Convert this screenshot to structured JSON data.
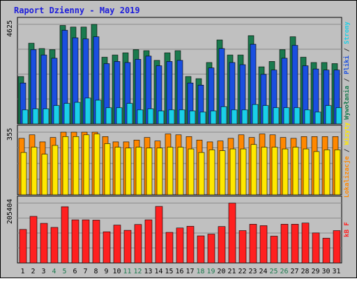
{
  "chart_data": {
    "type": "bar",
    "title": "Raport Dzienny -  May 2019",
    "categories": [
      "1",
      "2",
      "3",
      "4",
      "5",
      "6",
      "7",
      "8",
      "9",
      "10",
      "11",
      "12",
      "13",
      "14",
      "15",
      "16",
      "17",
      "18",
      "19",
      "20",
      "21",
      "22",
      "23",
      "24",
      "25",
      "26",
      "27",
      "28",
      "29",
      "30",
      "31"
    ],
    "weekend_days": [
      "4",
      "5",
      "11",
      "12",
      "18",
      "19",
      "25",
      "26"
    ],
    "grid": true,
    "panels": [
      {
        "name": "top",
        "ymax": 4625,
        "ymax_label": "4625",
        "right_label": [
          {
            "text": "Wywołania",
            "color": "#1a7a4e"
          },
          {
            "text": " / ",
            "color": "#222222"
          },
          {
            "text": "Pliki",
            "color": "#1a4fe0"
          },
          {
            "text": " / ",
            "color": "#222222"
          },
          {
            "text": "Strony",
            "color": "#1ad0e8"
          }
        ],
        "series": [
          {
            "legend": "Wywołania",
            "color": "#1a7a4e",
            "values": [
              2200,
              3750,
              3500,
              3450,
              4575,
              4500,
              4500,
              4625,
              3100,
              3200,
              3300,
              3450,
              3400,
              2950,
              3300,
              3400,
              2200,
              2100,
              2850,
              3900,
              3200,
              3200,
              4100,
              2650,
              2900,
              3450,
              4050,
              3100,
              2850,
              2850,
              2800
            ]
          },
          {
            "legend": "Pliki",
            "color": "#1a4fe0",
            "values": [
              1900,
              3450,
              3200,
              3050,
              4350,
              4000,
              3950,
              4050,
              2800,
              2900,
              2850,
              3000,
              3150,
              2700,
              2900,
              2950,
              1900,
              1800,
              2600,
              3500,
              2850,
              2750,
              3700,
              2300,
              2500,
              3050,
              3650,
              2700,
              2550,
              2500,
              2500
            ]
          },
          {
            "legend": "Strony",
            "color": "#1ad0e8",
            "values": [
              650,
              700,
              700,
              850,
              950,
              1000,
              1200,
              1100,
              750,
              750,
              950,
              650,
              700,
              600,
              650,
              650,
              600,
              550,
              600,
              800,
              650,
              650,
              900,
              850,
              750,
              750,
              750,
              650,
              550,
              850,
              750
            ]
          }
        ]
      },
      {
        "name": "middle",
        "ymax": 355,
        "ymax_label": "355",
        "right_label": [
          {
            "text": "Lokalizacje",
            "color": "#ff8800"
          },
          {
            "text": " / ",
            "color": "#222222"
          },
          {
            "text": "Wizyty",
            "color": "#ffe800"
          }
        ],
        "series": [
          {
            "legend": "Lokalizacje",
            "color": "#ff8800",
            "values": [
              320,
              340,
              300,
              325,
              355,
              355,
              355,
              355,
              330,
              300,
              300,
              310,
              325,
              305,
              345,
              340,
              330,
              310,
              300,
              305,
              320,
              340,
              325,
              345,
              340,
              325,
              320,
              330,
              330,
              330,
              330
            ]
          },
          {
            "legend": "Wizyty",
            "color": "#ffe800",
            "values": [
              240,
              270,
              230,
              280,
              330,
              330,
              340,
              345,
              290,
              270,
              265,
              270,
              265,
              265,
              270,
              270,
              260,
              240,
              255,
              250,
              260,
              260,
              285,
              270,
              270,
              260,
              270,
              260,
              245,
              255,
              255
            ]
          }
        ]
      },
      {
        "name": "bottom",
        "ymax": 205404,
        "ymax_label": "205404",
        "right_label": [
          {
            "text": "kB F",
            "color": "#ff2020"
          }
        ],
        "series": [
          {
            "legend": "kB F",
            "color": "#ff2020",
            "values": [
              115000,
              160000,
              136000,
              122000,
              193000,
              148000,
              148000,
              147000,
              107000,
              130000,
              112000,
              132000,
              148000,
              194000,
              105000,
              120000,
              126000,
              93000,
              99000,
              125000,
              205404,
              111000,
              133000,
              128000,
              92000,
              133000,
              133000,
              137000,
              103000,
              85000,
              111000
            ]
          }
        ]
      }
    ]
  }
}
